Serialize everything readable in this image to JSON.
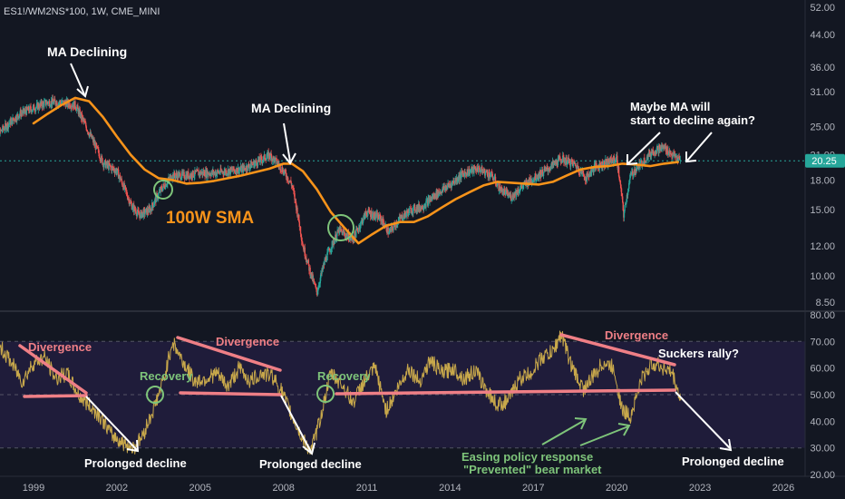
{
  "symbol_header": "ES1!/WM2NS*100, 1W, CME_MINI",
  "colors": {
    "background": "#131722",
    "candle_up": "#26a69a",
    "candle_down": "#ef5350",
    "sma": "#f7931a",
    "rsi": "#c8a84b",
    "pink": "#ef7f86",
    "green_annot": "#7ec47a",
    "white": "#ffffff",
    "price_tag_bg": "#26a69a",
    "axis_text": "#b2b5be"
  },
  "price_axis": {
    "scale": "log",
    "ticks": [
      "52.00",
      "44.00",
      "36.00",
      "31.00",
      "25.00",
      "21.00",
      "18.00",
      "15.00",
      "12.00",
      "10.00",
      "8.50"
    ],
    "current_value": "20.25"
  },
  "osc_axis": {
    "ticks": [
      "80.00",
      "70.00",
      "60.00",
      "50.00",
      "40.00",
      "30.00",
      "20.00"
    ],
    "bands": {
      "upper": 70,
      "middle": 50,
      "lower": 30
    }
  },
  "time_axis": {
    "ticks": [
      "1999",
      "2002",
      "2005",
      "2008",
      "2011",
      "2014",
      "2017",
      "2020",
      "2023",
      "2026"
    ]
  },
  "annotations": {
    "ma_declining_1": "MA Declining",
    "ma_declining_2": "MA Declining",
    "maybe_ma_line1": "Maybe MA will",
    "maybe_ma_line2": "start to decline again?",
    "sma_label": "100W SMA",
    "divergence_1": "Divergence",
    "divergence_2": "Divergence",
    "divergence_3": "Divergence",
    "recovery_1": "Recovery",
    "recovery_2": "Recovery",
    "suckers_rally": "Suckers rally?",
    "prolonged_1": "Prolonged decline",
    "prolonged_2": "Prolonged decline",
    "prolonged_3": "Prolonged decline",
    "easing_line1": "Easing policy response",
    "easing_line2": "\"Prevented\" bear market"
  },
  "chart_data": [
    {
      "type": "line",
      "title": "ES1!/WM2NS*100, 1W, CME_MINI",
      "x_label": "",
      "y_label": "",
      "y_scale": "log",
      "ylim": [
        8,
        55
      ],
      "series": [
        {
          "name": "",
          "x": [
            1997.5,
            1998.0,
            1998.5,
            1999.0,
            1999.5,
            2000.0,
            2000.5,
            2001.0,
            2001.5,
            2002.0,
            2002.5,
            2002.8,
            2003.2,
            2003.6,
            2004.0,
            2004.5,
            2005.0,
            2005.5,
            2006.0,
            2006.5,
            2007.0,
            2007.5,
            2007.9,
            2008.3,
            2008.7,
            2008.95,
            2009.2,
            2009.5,
            2010.0,
            2010.5,
            2011.0,
            2011.5,
            2011.8,
            2012.2,
            2012.6,
            2013.0,
            2013.5,
            2014.0,
            2014.5,
            2015.0,
            2015.5,
            2015.8,
            2016.2,
            2016.6,
            2017.0,
            2017.5,
            2018.0,
            2018.5,
            2018.9,
            2019.2,
            2019.6,
            2020.0,
            2020.25,
            2020.5,
            2020.9,
            2021.3,
            2021.7,
            2022.0,
            2022.3
          ],
          "y": [
            23,
            25,
            27,
            28,
            29,
            29,
            28.5,
            24,
            20,
            19,
            15.5,
            14.5,
            15,
            17,
            18.5,
            18.5,
            18.8,
            18.8,
            19,
            19.2,
            20,
            21,
            19.5,
            17.5,
            12,
            10.3,
            9,
            11,
            13.2,
            12.5,
            14.8,
            14.2,
            13,
            14.2,
            15,
            15.3,
            16.5,
            17.5,
            18.8,
            19.3,
            18.5,
            17,
            16.2,
            17.3,
            18.2,
            19.2,
            20.5,
            19.8,
            18.2,
            19.5,
            20,
            20.5,
            14.5,
            18.5,
            20,
            21.5,
            22,
            21,
            20.25
          ]
        },
        {
          "name": "100W SMA",
          "x": [
            1999.0,
            1999.5,
            2000.0,
            2000.5,
            2001.0,
            2001.5,
            2002.0,
            2002.5,
            2003.0,
            2003.5,
            2004.0,
            2004.5,
            2005.0,
            2005.5,
            2006.0,
            2006.5,
            2007.0,
            2007.5,
            2008.0,
            2008.3,
            2008.7,
            2009.2,
            2009.7,
            2010.2,
            2010.7,
            2011.2,
            2011.7,
            2012.2,
            2012.7,
            2013.2,
            2013.7,
            2014.2,
            2014.7,
            2015.2,
            2015.7,
            2016.2,
            2016.7,
            2017.2,
            2017.7,
            2018.2,
            2018.7,
            2019.2,
            2019.7,
            2020.2,
            2020.7,
            2021.2,
            2021.7,
            2022.2
          ],
          "y": [
            25.5,
            27,
            28.5,
            29.8,
            29.2,
            26.5,
            23.5,
            21,
            19.2,
            18.2,
            18,
            17.6,
            17.7,
            17.9,
            18.2,
            18.5,
            18.9,
            19.3,
            19.9,
            19.9,
            19,
            17,
            14.8,
            13.4,
            12.2,
            12.9,
            13.6,
            13.9,
            13.9,
            14.4,
            15.2,
            16,
            16.7,
            17.4,
            17.8,
            17.7,
            17.6,
            17.5,
            17.8,
            18.5,
            19.2,
            19.5,
            19.6,
            19.9,
            19.8,
            19.6,
            19.9,
            20.1
          ]
        }
      ]
    },
    {
      "type": "line",
      "title": "",
      "y_label": "",
      "ylim": [
        20,
        80
      ],
      "series": [
        {
          "name": "",
          "x": [
            1997.8,
            1998.2,
            1998.6,
            1999.0,
            1999.4,
            1999.8,
            2000.2,
            2000.6,
            2001.0,
            2001.4,
            2001.8,
            2002.2,
            2002.6,
            2002.9,
            2003.3,
            2003.7,
            2004.0,
            2004.4,
            2004.8,
            2005.2,
            2005.6,
            2006.0,
            2006.4,
            2006.8,
            2007.2,
            2007.6,
            2007.9,
            2008.3,
            2008.7,
            2009.0,
            2009.3,
            2009.7,
            2010.1,
            2010.5,
            2010.9,
            2011.3,
            2011.7,
            2012.1,
            2012.5,
            2012.9,
            2013.3,
            2013.7,
            2014.1,
            2014.5,
            2014.9,
            2015.3,
            2015.7,
            2016.1,
            2016.5,
            2016.9,
            2017.3,
            2017.7,
            2018.0,
            2018.4,
            2018.8,
            2019.1,
            2019.5,
            2019.9,
            2020.2,
            2020.5,
            2020.9,
            2021.3,
            2021.7,
            2022.0,
            2022.3
          ],
          "y": [
            68,
            62,
            55,
            62,
            64,
            56,
            58,
            50,
            46,
            42,
            35,
            32,
            30,
            34,
            44,
            56,
            70,
            62,
            55,
            56,
            58,
            53,
            60,
            55,
            58,
            57,
            52,
            42,
            33,
            29,
            40,
            58,
            54,
            47,
            55,
            60,
            44,
            52,
            60,
            55,
            63,
            58,
            60,
            56,
            59,
            52,
            46,
            48,
            56,
            58,
            64,
            66,
            73,
            60,
            52,
            56,
            62,
            60,
            44,
            42,
            56,
            62,
            60,
            58,
            48
          ]
        }
      ]
    }
  ]
}
